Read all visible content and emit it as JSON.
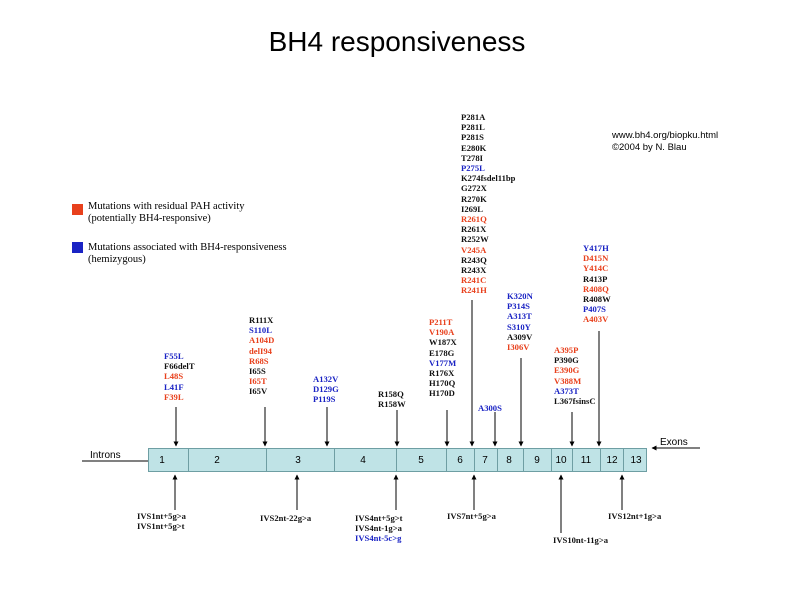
{
  "title": "BH4 responsiveness",
  "credit": {
    "line1": "www.bh4.org/biopku.html",
    "line2": "©2004 by N. Blau"
  },
  "colors": {
    "residual": "#e8401c",
    "bh4": "#1a23c4",
    "other": "#111111",
    "bar": "#bfe3e6"
  },
  "legend": {
    "residual": {
      "line1": "Mutations with residual PAH activity",
      "line2": "(potentially BH4-responsive)"
    },
    "bh4": {
      "line1": "Mutations associated with BH4-responsiveness",
      "line2": "(hemizygous)"
    }
  },
  "gene": {
    "introns_label": "Introns",
    "exons_label": "Exons",
    "exons": [
      "1",
      "2",
      "3",
      "4",
      "5",
      "6",
      "7",
      "8",
      "9",
      "10",
      "11",
      "12",
      "13"
    ]
  },
  "groups": {
    "g_exon2": [
      {
        "t": "F55L",
        "c": "blue"
      },
      {
        "t": "F66delT",
        "c": "black"
      },
      {
        "t": "L48S",
        "c": "red"
      },
      {
        "t": "L41F",
        "c": "blue"
      },
      {
        "t": "F39L",
        "c": "red"
      }
    ],
    "g_exon3a": [
      {
        "t": "R111X",
        "c": "black"
      },
      {
        "t": "S110L",
        "c": "blue"
      },
      {
        "t": "A104D",
        "c": "red"
      },
      {
        "t": "delI94",
        "c": "red"
      },
      {
        "t": "R68S",
        "c": "red"
      },
      {
        "t": "I65S",
        "c": "black"
      },
      {
        "t": "I65T",
        "c": "red"
      },
      {
        "t": "I65V",
        "c": "black"
      }
    ],
    "g_exon3b": [
      {
        "t": "A132V",
        "c": "blue"
      },
      {
        "t": "D129G",
        "c": "blue"
      },
      {
        "t": "P119S",
        "c": "blue"
      }
    ],
    "g_exon5": [
      {
        "t": "R158Q",
        "c": "black"
      },
      {
        "t": "R158W",
        "c": "black"
      }
    ],
    "g_exon6a": [
      {
        "t": "P211T",
        "c": "red"
      },
      {
        "t": "V190A",
        "c": "red"
      },
      {
        "t": "W187X",
        "c": "black"
      },
      {
        "t": "E178G",
        "c": "black"
      },
      {
        "t": "V177M",
        "c": "blue"
      },
      {
        "t": "R176X",
        "c": "black"
      },
      {
        "t": "H170Q",
        "c": "black"
      },
      {
        "t": "H170D",
        "c": "black"
      }
    ],
    "g_exon7": [
      {
        "t": "P281A",
        "c": "black"
      },
      {
        "t": "P281L",
        "c": "black"
      },
      {
        "t": "P281S",
        "c": "black"
      },
      {
        "t": "E280K",
        "c": "black"
      },
      {
        "t": "T278I",
        "c": "black"
      },
      {
        "t": "P275L",
        "c": "blue"
      },
      {
        "t": "K274fsdel11bp",
        "c": "black"
      },
      {
        "t": "G272X",
        "c": "black"
      },
      {
        "t": "R270K",
        "c": "black"
      },
      {
        "t": "I269L",
        "c": "black"
      },
      {
        "t": "R261Q",
        "c": "red"
      },
      {
        "t": "R261X",
        "c": "black"
      },
      {
        "t": "R252W",
        "c": "black"
      },
      {
        "t": "V245A",
        "c": "red"
      },
      {
        "t": "R243Q",
        "c": "black"
      },
      {
        "t": "R243X",
        "c": "black"
      },
      {
        "t": "R241C",
        "c": "red"
      },
      {
        "t": "R241H",
        "c": "red"
      }
    ],
    "g_exon7b": [
      {
        "t": "A300S",
        "c": "blue"
      }
    ],
    "g_exon9": [
      {
        "t": "K320N",
        "c": "blue"
      },
      {
        "t": "P314S",
        "c": "blue"
      },
      {
        "t": "A313T",
        "c": "blue"
      },
      {
        "t": "S310Y",
        "c": "blue"
      },
      {
        "t": "A309V",
        "c": "black"
      },
      {
        "t": "I306V",
        "c": "red"
      }
    ],
    "g_exon11": [
      {
        "t": "A395P",
        "c": "red"
      },
      {
        "t": "P390G",
        "c": "black"
      },
      {
        "t": "E390G",
        "c": "red"
      },
      {
        "t": "V388M",
        "c": "red"
      },
      {
        "t": "A373T",
        "c": "blue"
      },
      {
        "t": "L367fsinsC",
        "c": "black"
      }
    ],
    "g_exon12": [
      {
        "t": "Y417H",
        "c": "blue"
      },
      {
        "t": "D415N",
        "c": "red"
      },
      {
        "t": "Y414C",
        "c": "red"
      },
      {
        "t": "R413P",
        "c": "black"
      },
      {
        "t": "R408Q",
        "c": "red"
      },
      {
        "t": "R408W",
        "c": "black"
      },
      {
        "t": "P407S",
        "c": "blue"
      },
      {
        "t": "A403V",
        "c": "red"
      }
    ],
    "g_ivs1": [
      {
        "t": "IVS1nt+5g>a",
        "c": "black"
      },
      {
        "t": "IVS1nt+5g>t",
        "c": "black"
      }
    ],
    "g_ivs2": [
      {
        "t": "IVS2nt-22g>a",
        "c": "black"
      }
    ],
    "g_ivs4": [
      {
        "t": "IVS4nt+5g>t",
        "c": "black"
      },
      {
        "t": "IVS4nt-1g>a",
        "c": "black"
      },
      {
        "t": "IVS4nt-5c>g",
        "c": "blue"
      }
    ],
    "g_ivs7": [
      {
        "t": "IVS7nt+5g>a",
        "c": "black"
      }
    ],
    "g_ivs10": [
      {
        "t": "IVS10nt-11g>a",
        "c": "black"
      }
    ],
    "g_ivs12": [
      {
        "t": "IVS12nt+1g>a",
        "c": "black"
      }
    ]
  }
}
